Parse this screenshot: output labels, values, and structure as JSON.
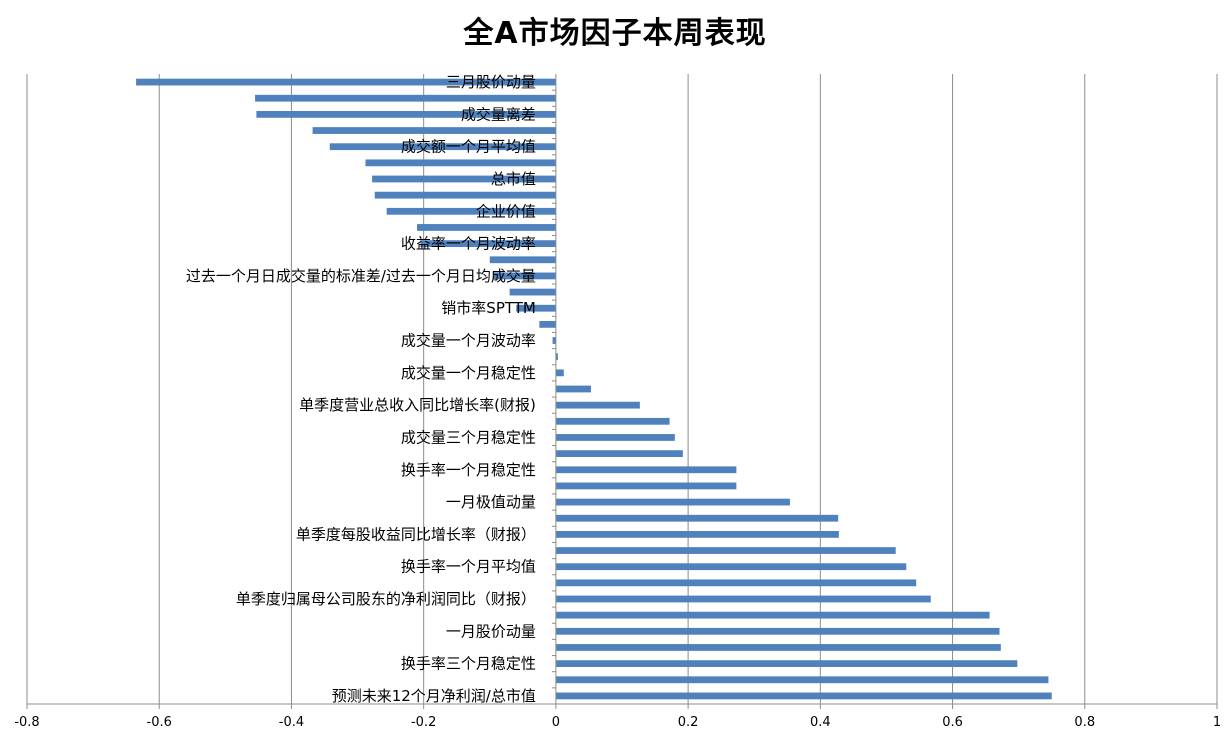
{
  "chart_data": {
    "type": "bar",
    "orientation": "horizontal",
    "title": "全A市场因子本周表现",
    "xlim": [
      -0.8,
      1
    ],
    "xticks": [
      -0.8,
      -0.6,
      -0.4,
      -0.2,
      0,
      0.2,
      0.4,
      0.6,
      0.8,
      1
    ],
    "xtick_labels": [
      "-0.8",
      "-0.6",
      "-0.4",
      "-0.2",
      "0",
      "0.2",
      "0.4",
      "0.6",
      "0.8",
      "1"
    ],
    "grid": "vertical",
    "bar_color": "#4F81BD",
    "categories": [
      "三月股价动量",
      "",
      "成交量离差",
      "",
      "成交额一个月平均值",
      "",
      "总市值",
      "",
      "企业价值",
      "",
      "收益率一个月波动率",
      "",
      "过去一个月日成交量的标准差/过去一个月日均成交量",
      "",
      "销市率SPTTM",
      "",
      "成交量一个月波动率",
      "",
      "成交量一个月稳定性",
      "",
      "单季度营业总收入同比增长率(财报)",
      "",
      "成交量三个月稳定性",
      "",
      "换手率一个月稳定性",
      "",
      "一月极值动量",
      "",
      "单季度每股收益同比增长率（财报）",
      "",
      "换手率一个月平均值",
      "",
      "单季度归属母公司股东的净利润同比（财报）",
      "",
      "一月股价动量",
      "",
      "换手率三个月稳定性",
      "",
      "预测未来12个月净利润/总市值"
    ],
    "values": [
      -0.635,
      -0.455,
      -0.453,
      -0.368,
      -0.342,
      -0.288,
      -0.278,
      -0.274,
      -0.256,
      -0.21,
      -0.205,
      -0.1,
      -0.095,
      -0.07,
      -0.06,
      -0.025,
      -0.005,
      0.003,
      0.012,
      0.053,
      0.127,
      0.172,
      0.18,
      0.192,
      0.273,
      0.273,
      0.354,
      0.427,
      0.428,
      0.514,
      0.53,
      0.545,
      0.567,
      0.656,
      0.671,
      0.673,
      0.698,
      0.745,
      0.75
    ]
  }
}
